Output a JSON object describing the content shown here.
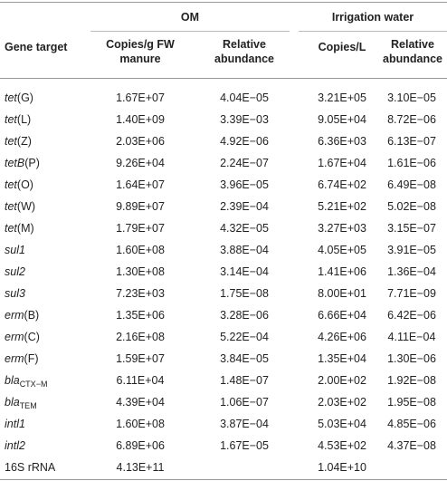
{
  "table": {
    "groups": [
      "OM",
      "Irrigation water"
    ],
    "columns": [
      "Gene target",
      "Copies/g FW manure",
      "Relative abundance",
      "Copies/L",
      "Relative abundance"
    ],
    "rows": [
      {
        "gene": {
          "italic": "tet",
          "roman": "(G)"
        },
        "cells": [
          "1.67E+07",
          "4.04E−05",
          "3.21E+05",
          "3.10E−05"
        ]
      },
      {
        "gene": {
          "italic": "tet",
          "roman": "(L)"
        },
        "cells": [
          "1.40E+09",
          "3.39E−03",
          "9.05E+04",
          "8.72E−06"
        ]
      },
      {
        "gene": {
          "italic": "tet",
          "roman": "(Z)"
        },
        "cells": [
          "2.03E+06",
          "4.92E−06",
          "6.36E+03",
          "6.13E−07"
        ]
      },
      {
        "gene": {
          "italic": "tetB",
          "roman": "(P)"
        },
        "cells": [
          "9.26E+04",
          "2.24E−07",
          "1.67E+04",
          "1.61E−06"
        ]
      },
      {
        "gene": {
          "italic": "tet",
          "roman": "(O)"
        },
        "cells": [
          "1.64E+07",
          "3.96E−05",
          "6.74E+02",
          "6.49E−08"
        ]
      },
      {
        "gene": {
          "italic": "tet",
          "roman": "(W)"
        },
        "cells": [
          "9.89E+07",
          "2.39E−04",
          "5.21E+02",
          "5.02E−08"
        ]
      },
      {
        "gene": {
          "italic": "tet",
          "roman": "(M)"
        },
        "cells": [
          "1.79E+07",
          "4.32E−05",
          "3.27E+03",
          "3.15E−07"
        ]
      },
      {
        "gene": {
          "italic": "sul1"
        },
        "cells": [
          "1.60E+08",
          "3.88E−04",
          "4.05E+05",
          "3.91E−05"
        ]
      },
      {
        "gene": {
          "italic": "sul2"
        },
        "cells": [
          "1.30E+08",
          "3.14E−04",
          "1.41E+06",
          "1.36E−04"
        ]
      },
      {
        "gene": {
          "italic": "sul3"
        },
        "cells": [
          "7.23E+03",
          "1.75E−08",
          "8.00E+01",
          "7.71E−09"
        ]
      },
      {
        "gene": {
          "italic": "erm",
          "roman": "(B)"
        },
        "cells": [
          "1.35E+06",
          "3.28E−06",
          "6.66E+04",
          "6.42E−06"
        ]
      },
      {
        "gene": {
          "italic": "erm",
          "roman": "(C)"
        },
        "cells": [
          "2.16E+08",
          "5.22E−04",
          "4.26E+06",
          "4.11E−04"
        ]
      },
      {
        "gene": {
          "italic": "erm",
          "roman": "(F)"
        },
        "cells": [
          "1.59E+07",
          "3.84E−05",
          "1.35E+04",
          "1.30E−06"
        ]
      },
      {
        "gene": {
          "italic": "bla",
          "sub": "CTX−M"
        },
        "cells": [
          "6.11E+04",
          "1.48E−07",
          "2.00E+02",
          "1.92E−08"
        ]
      },
      {
        "gene": {
          "italic": "bla",
          "sub": "TEM"
        },
        "cells": [
          "4.39E+04",
          "1.06E−07",
          "2.03E+02",
          "1.95E−08"
        ]
      },
      {
        "gene": {
          "italic": "intl1"
        },
        "cells": [
          "1.60E+08",
          "3.87E−04",
          "5.03E+04",
          "4.85E−06"
        ]
      },
      {
        "gene": {
          "italic": "intl2"
        },
        "cells": [
          "6.89E+06",
          "1.67E−05",
          "4.53E+02",
          "4.37E−08"
        ]
      },
      {
        "gene": {
          "roman": "16S rRNA"
        },
        "cells": [
          "4.13E+11",
          null,
          "1.04E+10",
          null
        ]
      }
    ]
  }
}
